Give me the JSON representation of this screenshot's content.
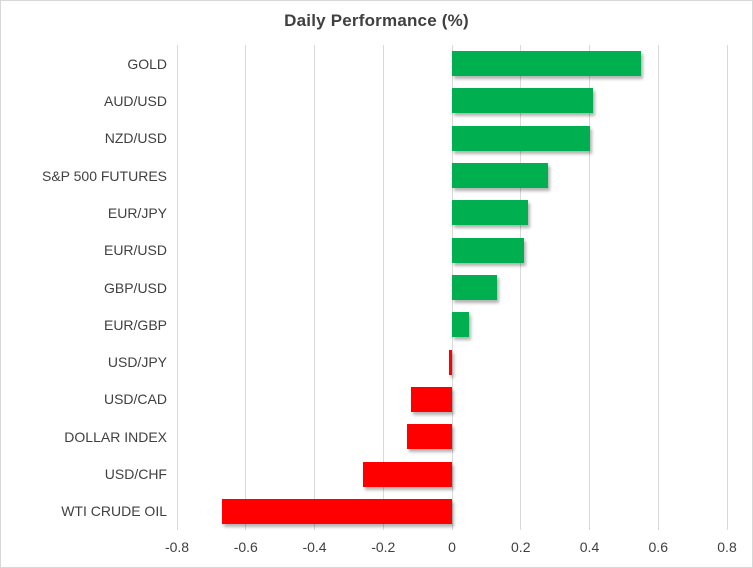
{
  "chart_data": {
    "type": "bar",
    "orientation": "horizontal",
    "title": "Daily Performance (%)",
    "categories": [
      "GOLD",
      "AUD/USD",
      "NZD/USD",
      "S&P 500 FUTURES",
      "EUR/JPY",
      "EUR/USD",
      "GBP/USD",
      "EUR/GBP",
      "USD/JPY",
      "USD/CAD",
      "DOLLAR INDEX",
      "USD/CHF",
      "WTI CRUDE OIL"
    ],
    "values": [
      0.55,
      0.41,
      0.4,
      0.28,
      0.22,
      0.21,
      0.13,
      0.05,
      -0.01,
      -0.12,
      -0.13,
      -0.26,
      -0.67
    ],
    "xlabel": "",
    "ylabel": "",
    "xlim": [
      -0.8,
      0.8
    ],
    "ticks": [
      -0.8,
      -0.6,
      -0.4,
      -0.2,
      0,
      0.2,
      0.4,
      0.6,
      0.8
    ],
    "tick_labels": [
      "-0.8",
      "-0.6",
      "-0.4",
      "-0.2",
      "0",
      "0.2",
      "0.4",
      "0.6",
      "0.8"
    ],
    "grid": true,
    "legend": false,
    "colors": {
      "positive": "#00B050",
      "negative": "#FF0000",
      "gridline": "#D9D9D9",
      "text": "#404040",
      "border": "#D7D7D7",
      "background": "#FFFFFF"
    }
  }
}
